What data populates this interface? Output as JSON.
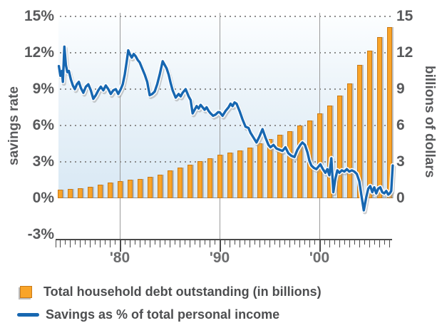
{
  "chart_data": {
    "type": "bar+line",
    "left_axis": {
      "title": "savings rate",
      "tick_labels": [
        "15%",
        "12%",
        "9%",
        "6%",
        "3%",
        "0%",
        "-3%"
      ],
      "tick_values": [
        15,
        12,
        9,
        6,
        3,
        0,
        -3
      ],
      "range": [
        -3,
        15
      ]
    },
    "right_axis": {
      "title": "billions of dollars",
      "tick_labels": [
        "15",
        "12",
        "9",
        "6",
        "3",
        "0"
      ],
      "tick_values": [
        15,
        12,
        9,
        6,
        3,
        0
      ],
      "range": [
        0,
        15
      ]
    },
    "x_axis": {
      "tick_labels": [
        "'80",
        "'90",
        "'00"
      ],
      "tick_years": [
        1980,
        1990,
        2000
      ],
      "year_range": [
        1974,
        2007
      ],
      "minor_tick_step_years": 0.5
    },
    "gridlines": {
      "horizontal_dotted_at": [
        15,
        12,
        9,
        6,
        3
      ],
      "solid_zero_line": true,
      "vertical_at_years": [
        1980,
        1990,
        2000
      ]
    },
    "legend": [
      {
        "label": "Total household debt outstanding (in billions)",
        "marker": "bar-swatch",
        "color": "#f9a428"
      },
      {
        "label": "Savings as % of total personal income",
        "marker": "line-swatch",
        "color": "#1767b1"
      }
    ],
    "bar_series": {
      "name": "Total household debt outstanding (in billions)",
      "axis": "right",
      "years": [
        1974,
        1975,
        1976,
        1977,
        1978,
        1979,
        1980,
        1981,
        1982,
        1983,
        1984,
        1985,
        1986,
        1987,
        1988,
        1989,
        1990,
        1991,
        1992,
        1993,
        1994,
        1995,
        1996,
        1997,
        1998,
        1999,
        2000,
        2001,
        2002,
        2003,
        2004,
        2005,
        2006,
        2007
      ],
      "values": [
        0.68,
        0.74,
        0.83,
        0.96,
        1.1,
        1.28,
        1.4,
        1.51,
        1.58,
        1.74,
        1.94,
        2.27,
        2.54,
        2.75,
        3.04,
        3.32,
        3.59,
        3.77,
        3.97,
        4.2,
        4.53,
        4.86,
        5.21,
        5.55,
        6.0,
        6.4,
        7.0,
        7.65,
        8.45,
        9.5,
        11.0,
        12.2,
        13.3,
        14.1
      ]
    },
    "line_series": {
      "name": "Savings as % of total personal income",
      "axis": "left",
      "points": [
        [
          1973.9,
          10.9
        ],
        [
          1974.05,
          10.1
        ],
        [
          1974.2,
          10.5
        ],
        [
          1974.3,
          9.6
        ],
        [
          1974.45,
          12.5
        ],
        [
          1974.6,
          11.0
        ],
        [
          1974.75,
          10.4
        ],
        [
          1974.9,
          10.5
        ],
        [
          1975.1,
          9.8
        ],
        [
          1975.3,
          9.3
        ],
        [
          1975.5,
          9.0
        ],
        [
          1975.7,
          9.4
        ],
        [
          1975.9,
          9.6
        ],
        [
          1976.1,
          9.1
        ],
        [
          1976.35,
          8.7
        ],
        [
          1976.6,
          9.2
        ],
        [
          1976.85,
          9.4
        ],
        [
          1977.1,
          8.9
        ],
        [
          1977.35,
          8.2
        ],
        [
          1977.6,
          8.5
        ],
        [
          1977.85,
          8.9
        ],
        [
          1978.1,
          9.2
        ],
        [
          1978.35,
          8.9
        ],
        [
          1978.6,
          9.3
        ],
        [
          1978.85,
          9.0
        ],
        [
          1979.1,
          8.6
        ],
        [
          1979.35,
          8.9
        ],
        [
          1979.6,
          9.0
        ],
        [
          1979.85,
          8.6
        ],
        [
          1980.1,
          9.0
        ],
        [
          1980.3,
          9.4
        ],
        [
          1980.5,
          10.2
        ],
        [
          1980.7,
          11.3
        ],
        [
          1980.85,
          12.2
        ],
        [
          1981.0,
          11.9
        ],
        [
          1981.2,
          11.6
        ],
        [
          1981.4,
          11.9
        ],
        [
          1981.6,
          11.7
        ],
        [
          1981.8,
          11.4
        ],
        [
          1982.0,
          11.2
        ],
        [
          1982.25,
          10.7
        ],
        [
          1982.5,
          10.2
        ],
        [
          1982.75,
          9.6
        ],
        [
          1983.0,
          8.5
        ],
        [
          1983.25,
          8.6
        ],
        [
          1983.5,
          8.8
        ],
        [
          1983.75,
          9.4
        ],
        [
          1984.0,
          10.2
        ],
        [
          1984.3,
          11.3
        ],
        [
          1984.5,
          11.0
        ],
        [
          1984.7,
          10.7
        ],
        [
          1984.9,
          10.2
        ],
        [
          1985.1,
          9.5
        ],
        [
          1985.3,
          8.9
        ],
        [
          1985.6,
          8.3
        ],
        [
          1985.9,
          8.6
        ],
        [
          1986.1,
          8.4
        ],
        [
          1986.3,
          8.7
        ],
        [
          1986.6,
          9.0
        ],
        [
          1986.9,
          8.4
        ],
        [
          1987.1,
          8.1
        ],
        [
          1987.3,
          7.0
        ],
        [
          1987.5,
          7.3
        ],
        [
          1987.7,
          7.6
        ],
        [
          1987.9,
          7.4
        ],
        [
          1988.1,
          7.7
        ],
        [
          1988.3,
          7.5
        ],
        [
          1988.5,
          7.3
        ],
        [
          1988.7,
          7.5
        ],
        [
          1988.9,
          7.2
        ],
        [
          1989.1,
          7.0
        ],
        [
          1989.35,
          6.8
        ],
        [
          1989.6,
          6.9
        ],
        [
          1989.85,
          7.1
        ],
        [
          1990.0,
          7.1
        ],
        [
          1990.3,
          6.8
        ],
        [
          1990.6,
          7.2
        ],
        [
          1990.9,
          7.5
        ],
        [
          1991.1,
          7.8
        ],
        [
          1991.3,
          7.6
        ],
        [
          1991.5,
          7.9
        ],
        [
          1991.7,
          7.8
        ],
        [
          1992.0,
          7.2
        ],
        [
          1992.3,
          6.5
        ],
        [
          1992.6,
          5.9
        ],
        [
          1992.9,
          5.8
        ],
        [
          1993.1,
          5.4
        ],
        [
          1993.4,
          5.0
        ],
        [
          1993.7,
          4.6
        ],
        [
          1994.0,
          5.1
        ],
        [
          1994.3,
          5.7
        ],
        [
          1994.6,
          5.0
        ],
        [
          1994.9,
          4.4
        ],
        [
          1995.1,
          4.2
        ],
        [
          1995.4,
          4.4
        ],
        [
          1995.7,
          4.1
        ],
        [
          1996.0,
          4.0
        ],
        [
          1996.3,
          3.9
        ],
        [
          1996.6,
          4.2
        ],
        [
          1996.9,
          3.7
        ],
        [
          1997.2,
          3.5
        ],
        [
          1997.5,
          3.4
        ],
        [
          1997.8,
          4.0
        ],
        [
          1998.1,
          4.4
        ],
        [
          1998.3,
          4.6
        ],
        [
          1998.55,
          4.4
        ],
        [
          1998.8,
          3.8
        ],
        [
          1999.0,
          3.1
        ],
        [
          1999.2,
          2.7
        ],
        [
          1999.45,
          2.5
        ],
        [
          1999.7,
          2.4
        ],
        [
          1999.9,
          2.6
        ],
        [
          2000.1,
          2.8
        ],
        [
          2000.35,
          2.4
        ],
        [
          2000.6,
          2.1
        ],
        [
          2000.8,
          2.4
        ],
        [
          2001.0,
          1.9
        ],
        [
          2001.2,
          3.3
        ],
        [
          2001.4,
          0.5
        ],
        [
          2001.6,
          1.6
        ],
        [
          2001.8,
          2.3
        ],
        [
          2002.0,
          2.1
        ],
        [
          2002.25,
          2.3
        ],
        [
          2002.5,
          2.2
        ],
        [
          2002.75,
          2.4
        ],
        [
          2003.0,
          2.2
        ],
        [
          2003.25,
          2.3
        ],
        [
          2003.5,
          2.2
        ],
        [
          2003.75,
          2.0
        ],
        [
          2004.0,
          1.4
        ],
        [
          2004.2,
          0.3
        ],
        [
          2004.45,
          -1.0
        ],
        [
          2004.7,
          0.1
        ],
        [
          2004.9,
          0.8
        ],
        [
          2005.1,
          1.0
        ],
        [
          2005.3,
          0.5
        ],
        [
          2005.5,
          0.9
        ],
        [
          2005.7,
          0.4
        ],
        [
          2005.9,
          0.8
        ],
        [
          2006.1,
          0.9
        ],
        [
          2006.3,
          0.5
        ],
        [
          2006.5,
          0.4
        ],
        [
          2006.7,
          0.6
        ],
        [
          2006.9,
          0.3
        ],
        [
          2007.05,
          0.4
        ],
        [
          2007.2,
          0.6
        ],
        [
          2007.35,
          2.7
        ]
      ]
    },
    "colors": {
      "bar_fill": "#f9a428",
      "bar_border": "#c97a18",
      "line": "#1767b1",
      "line_casing": "#ffffff",
      "line_shadow": "#9e9e9e",
      "plot_bg_top": "#fcfeff",
      "plot_bg_bottom": "#d8e8f4",
      "gridline": "#9b9b9b",
      "axis_text": "#58595b",
      "legend_text": "#4d4e50"
    }
  }
}
